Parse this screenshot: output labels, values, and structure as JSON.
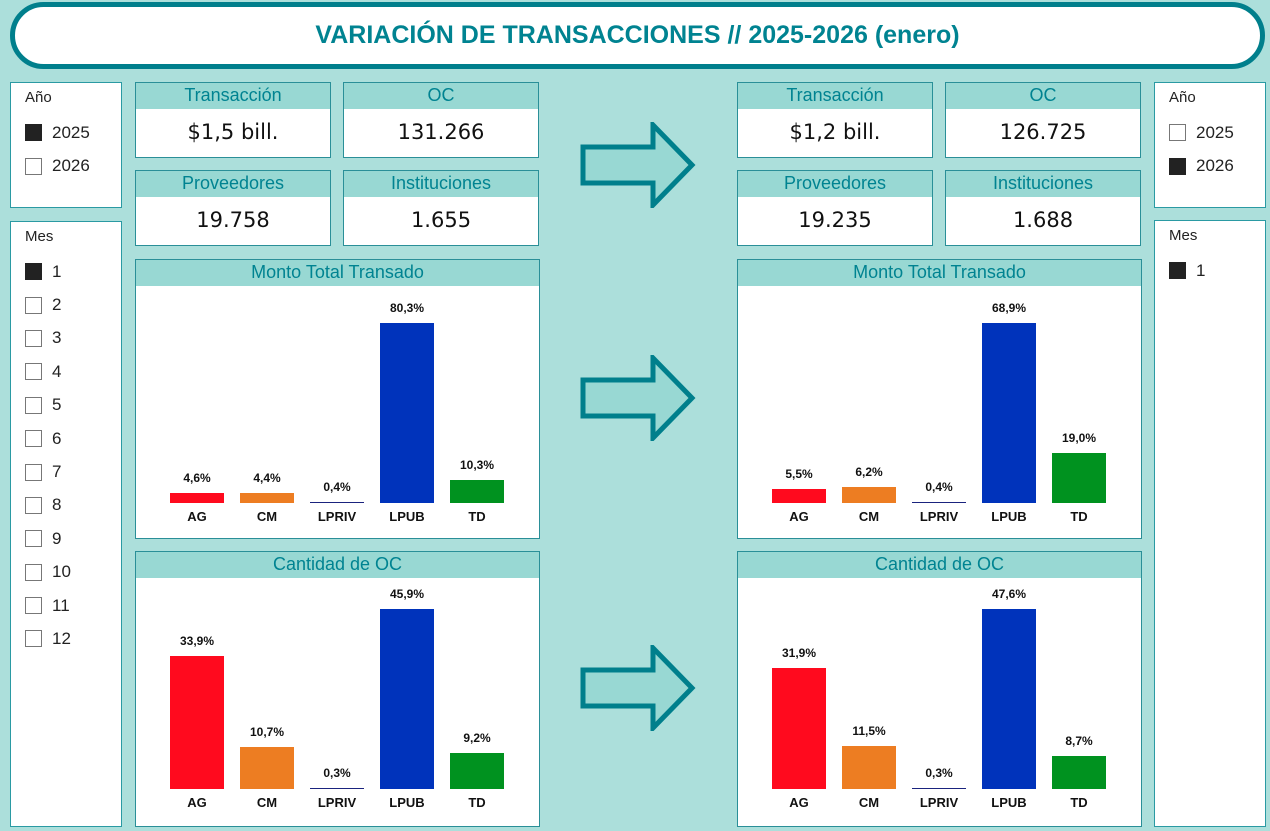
{
  "title": "VARIACIÓN DE TRANSACCIONES // 2025-2026 (enero)",
  "colors": {
    "accent": "#007f8c",
    "AG": "#ff0a1e",
    "CM": "#ed7d22",
    "LPRIV": "#1a237e",
    "LPUB": "#0033bb",
    "TD": "#00921f"
  },
  "left": {
    "anio": {
      "header": "Año",
      "options": [
        {
          "label": "2025",
          "checked": true
        },
        {
          "label": "2026",
          "checked": false
        }
      ]
    },
    "mes": {
      "header": "Mes",
      "options": [
        {
          "label": "1",
          "checked": true
        },
        {
          "label": "2",
          "checked": false
        },
        {
          "label": "3",
          "checked": false
        },
        {
          "label": "4",
          "checked": false
        },
        {
          "label": "5",
          "checked": false
        },
        {
          "label": "6",
          "checked": false
        },
        {
          "label": "7",
          "checked": false
        },
        {
          "label": "8",
          "checked": false
        },
        {
          "label": "9",
          "checked": false
        },
        {
          "label": "10",
          "checked": false
        },
        {
          "label": "11",
          "checked": false
        },
        {
          "label": "12",
          "checked": false
        }
      ]
    },
    "cards": [
      {
        "label": "Transacción",
        "value": "$1,5 bill."
      },
      {
        "label": "OC",
        "value": "131.266"
      },
      {
        "label": "Proveedores",
        "value": "19.758"
      },
      {
        "label": "Instituciones",
        "value": "1.655"
      }
    ]
  },
  "right": {
    "anio": {
      "header": "Año",
      "options": [
        {
          "label": "2025",
          "checked": false
        },
        {
          "label": "2026",
          "checked": true
        }
      ]
    },
    "mes": {
      "header": "Mes",
      "options": [
        {
          "label": "1",
          "checked": true
        }
      ]
    },
    "cards": [
      {
        "label": "Transacción",
        "value": "$1,2 bill."
      },
      {
        "label": "OC",
        "value": "126.725"
      },
      {
        "label": "Proveedores",
        "value": "19.235"
      },
      {
        "label": "Instituciones",
        "value": "1.688"
      }
    ]
  },
  "chart_data": [
    {
      "id": "left-monto",
      "type": "bar",
      "title": "Monto Total Transado",
      "categories": [
        "AG",
        "CM",
        "LPRIV",
        "LPUB",
        "TD"
      ],
      "values": [
        4.6,
        4.4,
        0.4,
        80.3,
        10.3
      ],
      "labels": [
        "4,6%",
        "4,4%",
        "0,4%",
        "80,3%",
        "10,3%"
      ]
    },
    {
      "id": "left-cantidad",
      "type": "bar",
      "title": "Cantidad de OC",
      "categories": [
        "AG",
        "CM",
        "LPRIV",
        "LPUB",
        "TD"
      ],
      "values": [
        33.9,
        10.7,
        0.3,
        45.9,
        9.2
      ],
      "labels": [
        "33,9%",
        "10,7%",
        "0,3%",
        "45,9%",
        "9,2%"
      ]
    },
    {
      "id": "right-monto",
      "type": "bar",
      "title": "Monto Total Transado",
      "categories": [
        "AG",
        "CM",
        "LPRIV",
        "LPUB",
        "TD"
      ],
      "values": [
        5.5,
        6.2,
        0.4,
        68.9,
        19.0
      ],
      "labels": [
        "5,5%",
        "6,2%",
        "0,4%",
        "68,9%",
        "19,0%"
      ]
    },
    {
      "id": "right-cantidad",
      "type": "bar",
      "title": "Cantidad de OC",
      "categories": [
        "AG",
        "CM",
        "LPRIV",
        "LPUB",
        "TD"
      ],
      "values": [
        31.9,
        11.5,
        0.3,
        47.6,
        8.7
      ],
      "labels": [
        "31,9%",
        "11,5%",
        "0,3%",
        "47,6%",
        "8,7%"
      ]
    }
  ]
}
